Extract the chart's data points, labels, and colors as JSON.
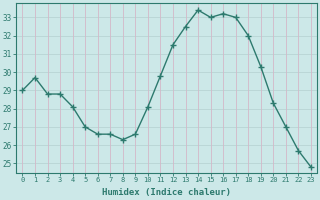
{
  "x": [
    0,
    1,
    2,
    3,
    4,
    5,
    6,
    7,
    8,
    9,
    10,
    11,
    12,
    13,
    14,
    15,
    16,
    17,
    18,
    19,
    20,
    21,
    22,
    23
  ],
  "y": [
    29.0,
    29.7,
    28.8,
    28.8,
    28.1,
    27.0,
    26.6,
    26.6,
    26.3,
    26.6,
    28.1,
    29.8,
    31.5,
    32.5,
    33.4,
    33.0,
    33.2,
    33.0,
    32.0,
    30.3,
    28.3,
    27.0,
    25.7,
    24.8
  ],
  "xlim": [
    -0.5,
    23.5
  ],
  "ylim": [
    24.5,
    33.8
  ],
  "yticks": [
    25,
    26,
    27,
    28,
    29,
    30,
    31,
    32,
    33
  ],
  "xticks": [
    0,
    1,
    2,
    3,
    4,
    5,
    6,
    7,
    8,
    9,
    10,
    11,
    12,
    13,
    14,
    15,
    16,
    17,
    18,
    19,
    20,
    21,
    22,
    23
  ],
  "xlabel": "Humidex (Indice chaleur)",
  "line_color": "#2d7a6e",
  "marker": "+",
  "marker_size": 4,
  "line_width": 1.0,
  "bg_color": "#cce8e8",
  "grid_color_major": "#c8b8c8",
  "grid_color_minor": "#c8d8d8",
  "tick_color": "#2d7a6e",
  "xlabel_color": "#2d7a6e",
  "title": ""
}
